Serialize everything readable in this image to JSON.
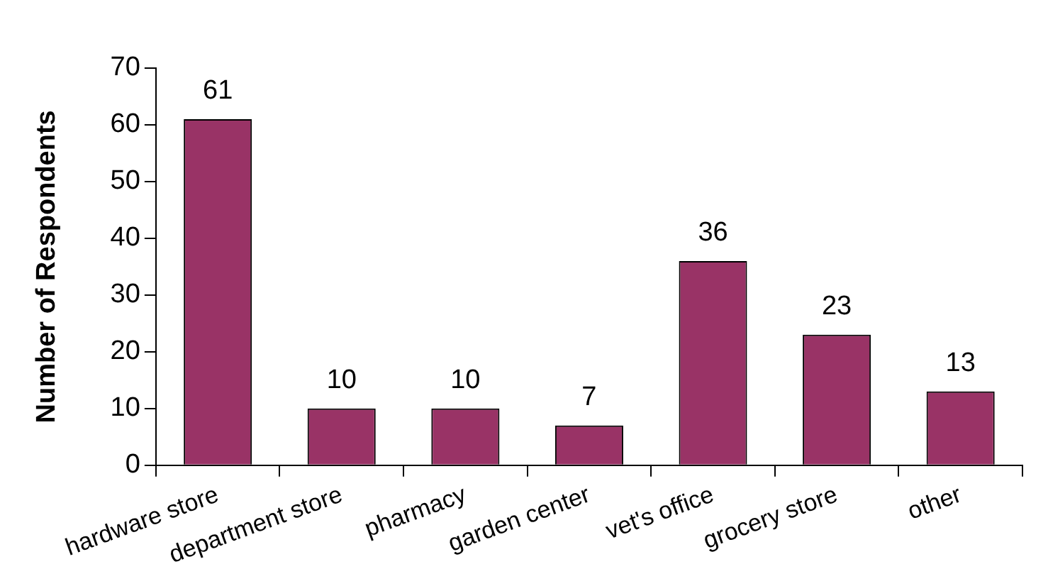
{
  "chart_data": {
    "type": "bar",
    "ylabel": "Number of Respondents",
    "categories": [
      "hardware store",
      "department store",
      "pharmacy",
      "garden center",
      "vet's office",
      "grocery store",
      "other"
    ],
    "values": [
      61,
      10,
      10,
      7,
      36,
      23,
      13
    ],
    "color": "#993366",
    "ylim": [
      0,
      70
    ],
    "yticks": [
      0,
      10,
      20,
      30,
      40,
      50,
      60,
      70
    ],
    "grid": false,
    "data_labels": true
  }
}
